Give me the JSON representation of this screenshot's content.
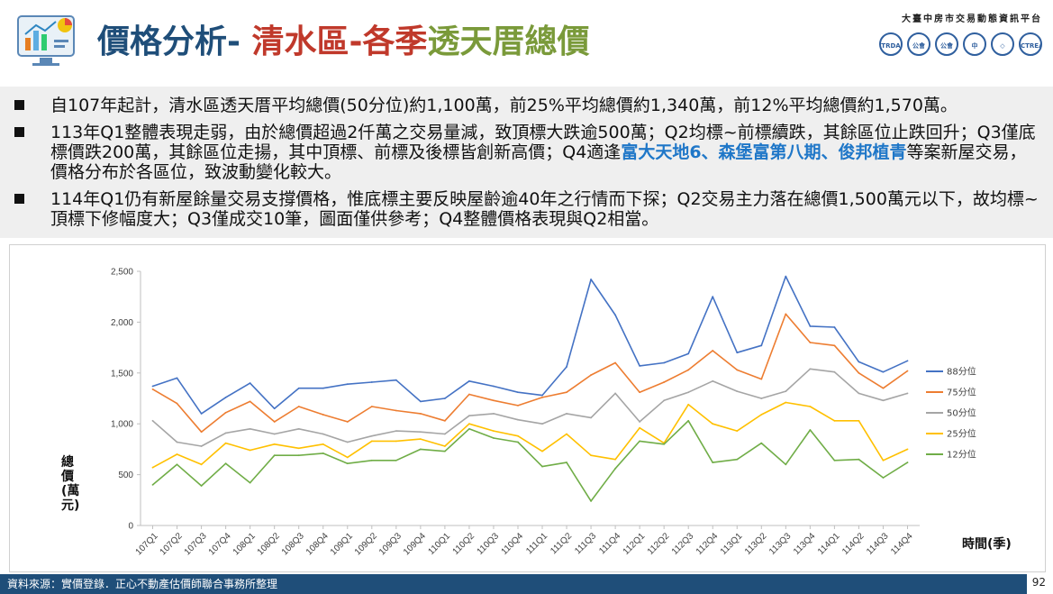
{
  "header": {
    "title_part1": "價格分析-",
    "title_part2": " 清水區-各季",
    "title_part3": "透天厝總價",
    "platform_name": "大臺中房市交易動態資訊平台",
    "partner_logos": [
      "TRDA",
      "公會",
      "公會",
      "中",
      "◇",
      "CTREAA"
    ]
  },
  "summary": {
    "bullet1": "自107年起計，清水區透天厝平均總價(50分位)約1,100萬，前25%平均總價約1,340萬，前12%平均總價約1,570萬。",
    "bullet2_a": "113年Q1整體表現走弱，由於總價超過2仟萬之交易量減，致頂標大跌逾500萬；Q2均標~前標續跌，其餘區位止跌回升；Q3僅底標價跌200萬，其餘區位走揚，其中頂標、前標及後標皆創新高價；Q4適逢",
    "bullet2_hl": "富大天地6、森堡富第八期、俊邦植青",
    "bullet2_b": "等案新屋交易，價格分布於各區位，致波動變化較大。",
    "bullet3": "114年Q1仍有新屋餘量交易支撐價格，惟底標主要反映屋齡逾40年之行情而下探；Q2交易主力落在總價1,500萬元以下，故均標~頂標下修幅度大；Q3僅成交10筆，圖面僅供參考；Q4整體價格表現與Q2相當。"
  },
  "footer": {
    "source": "資料來源：實價登錄．正心不動產估價師聯合事務所整理",
    "page_number": "92"
  },
  "chart_data": {
    "type": "line",
    "ylabel": "總價(萬元)",
    "xlabel": "時間(季)",
    "ylim": [
      0,
      2500
    ],
    "yticks": [
      "0",
      "500",
      "1,000",
      "1,500",
      "2,000",
      "2,500"
    ],
    "grid": false,
    "legend_position": "right",
    "categories": [
      "107Q1",
      "107Q2",
      "107Q3",
      "107Q4",
      "108Q1",
      "108Q2",
      "108Q3",
      "108Q4",
      "109Q1",
      "109Q2",
      "109Q3",
      "109Q4",
      "110Q1",
      "110Q2",
      "110Q3",
      "110Q4",
      "111Q1",
      "111Q2",
      "111Q3",
      "111Q4",
      "112Q1",
      "112Q2",
      "112Q3",
      "112Q4",
      "113Q1",
      "113Q2",
      "113Q3",
      "113Q4",
      "114Q1",
      "114Q2",
      "114Q3",
      "114Q4"
    ],
    "series": [
      {
        "name": "88分位",
        "color": "#4472c4",
        "values": [
          1370,
          1450,
          1100,
          1260,
          1400,
          1150,
          1350,
          1350,
          1390,
          1410,
          1430,
          1220,
          1250,
          1420,
          1370,
          1310,
          1280,
          1560,
          2420,
          2070,
          1570,
          1600,
          1690,
          2250,
          1700,
          1770,
          2450,
          1960,
          1950,
          1610,
          1510,
          1620
        ]
      },
      {
        "name": "75分位",
        "color": "#ed7d31",
        "values": [
          1340,
          1200,
          920,
          1110,
          1220,
          1020,
          1170,
          1090,
          1020,
          1170,
          1130,
          1100,
          1030,
          1290,
          1230,
          1180,
          1260,
          1310,
          1480,
          1600,
          1310,
          1410,
          1530,
          1720,
          1530,
          1440,
          2080,
          1800,
          1770,
          1500,
          1350,
          1520
        ]
      },
      {
        "name": "50分位",
        "color": "#a5a5a5",
        "values": [
          1030,
          820,
          780,
          910,
          950,
          900,
          950,
          900,
          820,
          880,
          930,
          920,
          900,
          1080,
          1100,
          1040,
          1000,
          1100,
          1060,
          1300,
          1020,
          1230,
          1310,
          1420,
          1320,
          1250,
          1320,
          1540,
          1510,
          1300,
          1230,
          1300
        ]
      },
      {
        "name": "25分位",
        "color": "#ffc000",
        "values": [
          570,
          700,
          600,
          810,
          740,
          800,
          760,
          800,
          670,
          830,
          830,
          850,
          780,
          1000,
          930,
          880,
          730,
          900,
          690,
          650,
          960,
          810,
          1190,
          1000,
          930,
          1090,
          1210,
          1170,
          1030,
          1030,
          640,
          750
        ]
      },
      {
        "name": "12分位",
        "color": "#70ad47",
        "values": [
          400,
          600,
          390,
          610,
          420,
          690,
          690,
          710,
          610,
          640,
          640,
          750,
          730,
          950,
          860,
          820,
          580,
          620,
          240,
          560,
          830,
          800,
          1030,
          620,
          650,
          810,
          600,
          940,
          640,
          650,
          470,
          620
        ]
      }
    ]
  }
}
